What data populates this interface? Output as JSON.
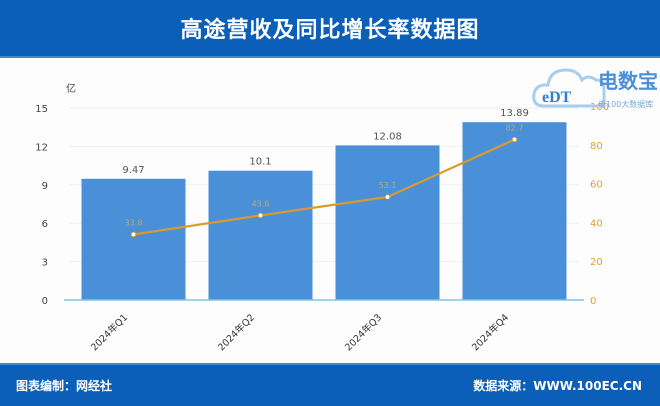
{
  "header": {
    "title": "高途营收及同比增长率数据图"
  },
  "footer": {
    "credit": "图表编制：网经社",
    "source": "数据来源：WWW.100EC.CN"
  },
  "watermark": {
    "brand": "电数宝",
    "sub": "电100大数据库",
    "badge": "eDT"
  },
  "colors": {
    "bar": "#4a90d9",
    "line": "#d99a2b",
    "header_bg": "#0b5fb8"
  },
  "chart_data": {
    "type": "bar",
    "title": "高途营收及同比增长率数据图",
    "categories": [
      "2024年Q1",
      "2024年Q2",
      "2024年Q3",
      "2024年Q4"
    ],
    "series": [
      {
        "name": "营收",
        "type": "bar",
        "axis": "left",
        "unit": "亿",
        "values": [
          9.47,
          10.1,
          12.08,
          13.89
        ]
      },
      {
        "name": "同比增长率",
        "type": "line",
        "axis": "right",
        "unit": "%",
        "values": [
          33.8,
          43.6,
          53.1,
          82.7
        ]
      }
    ],
    "ylabel": "亿",
    "ylim": [
      0,
      15
    ],
    "yticks": [
      0,
      3,
      6,
      9,
      12,
      15
    ],
    "y2lim": [
      0,
      100
    ],
    "y2ticks": [
      0,
      20,
      40,
      60,
      80,
      100
    ],
    "grid": true,
    "legend": "none"
  }
}
